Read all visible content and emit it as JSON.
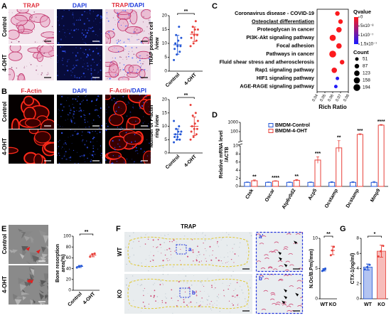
{
  "A": {
    "label": "A",
    "headers": [
      "TRAP",
      "DAPI"
    ],
    "merge_header": [
      "TRAP",
      "/DAPI"
    ],
    "header_colors": [
      "#e0303c",
      "#2240dd"
    ],
    "rows": [
      "Control",
      "4-OHT"
    ],
    "chart": {
      "type": "dot",
      "ylabel": [
        "TRAP positive cell",
        "/view"
      ],
      "categories": [
        "Control",
        "4-OHT"
      ],
      "groups": [
        {
          "color": "#2457d6",
          "points": [
            4,
            6,
            7,
            8,
            9,
            9,
            10,
            11,
            12,
            13,
            16
          ],
          "mean": 9.5,
          "sd": 3.4
        },
        {
          "color": "#e8403a",
          "points": [
            9,
            10,
            11,
            12,
            13,
            13,
            14,
            15,
            15,
            16,
            18
          ],
          "mean": 13.3,
          "sd": 2.6
        }
      ],
      "ylim": [
        0,
        20
      ],
      "yticks": [
        0,
        5,
        10,
        15,
        20
      ],
      "significance": "**"
    }
  },
  "B": {
    "label": "B",
    "headers": [
      "F-Actin",
      "DAPI"
    ],
    "merge_header": [
      "F-Actin",
      "/DAPI"
    ],
    "header_colors": [
      "#e0303c",
      "#2240dd"
    ],
    "rows": [
      "Control",
      "4-OHT"
    ],
    "chart": {
      "type": "dot",
      "ylabel": [
        "Number of F-actin",
        "ring /view"
      ],
      "categories": [
        "Control",
        "4-OHT"
      ],
      "groups": [
        {
          "color": "#2457d6",
          "points": [
            4,
            5,
            5,
            6,
            6,
            7,
            7,
            8,
            8,
            9,
            10,
            12
          ],
          "mean": 7,
          "sd": 2
        },
        {
          "color": "#e8403a",
          "points": [
            5,
            6,
            7,
            8,
            9,
            9,
            10,
            11,
            12,
            14,
            15,
            18
          ],
          "mean": 10,
          "sd": 3.5
        }
      ],
      "ylim": [
        0,
        20
      ],
      "yticks": [
        0,
        5,
        10,
        15,
        20
      ],
      "significance": "**"
    }
  },
  "C": {
    "label": "C",
    "chart": {
      "type": "bubble",
      "xlabel": "Rich Ratio",
      "terms": [
        "Coronavirus disease - COVID-19",
        "Osteoclast differentiation",
        "Proteoglycan in cancer",
        "PI3K-Akt signaling pathway",
        "Focal adhesion",
        "Pathways in cancer",
        "Fluid shear stress and atherosclerosis",
        "Rap1 signaling pathway",
        "HIF1 signaling pathway",
        "AGE-RAGE signaling pathway"
      ],
      "underline_index": 1,
      "x": [
        0.066,
        0.07,
        0.068,
        0.06,
        0.068,
        0.06,
        0.072,
        0.062,
        0.066,
        0.064
      ],
      "qvalue": [
        2e-09,
        1e-09,
        3e-09,
        2e-09,
        4e-09,
        1e-09,
        3e-09,
        5e-09,
        1.4e-07,
        1.45e-07
      ],
      "count": [
        87,
        87,
        123,
        158,
        123,
        194,
        87,
        123,
        51,
        51
      ],
      "xlim": [
        0.04,
        0.08
      ],
      "xticks": [
        0.04,
        0.05,
        0.06,
        0.07,
        0.08
      ],
      "qvalue_title": "Qvalue",
      "qlim": [
        0,
        1.5e-07
      ],
      "qticks": [
        0,
        {
          "value": 5e-08,
          "label": "5x10⁻⁸"
        },
        {
          "value": 1e-07,
          "label": "1x10⁻⁷"
        },
        {
          "value": 1.5e-07,
          "label": "1.5x10⁻⁷"
        }
      ],
      "count_title": "Count",
      "count_legend": [
        51,
        87,
        123,
        158,
        194
      ]
    }
  },
  "D": {
    "label": "D",
    "chart": {
      "type": "grouped_bar",
      "ylabel": [
        "Relative mRNA level",
        "/ACTB"
      ],
      "categories": [
        "Ctsk",
        "Oscar",
        "Atp6v0d2",
        "Acp5",
        "Ocstamp",
        "Dcstamp",
        "Mmp9"
      ],
      "series": [
        {
          "name": "BMDM-Control",
          "color": "#2457d6",
          "values": [
            1,
            1,
            1,
            1,
            1,
            1,
            1
          ],
          "sd": [
            0.1,
            0.1,
            0.1,
            0.1,
            0.15,
            0.15,
            0.2
          ]
        },
        {
          "name": "BMDM-4-OHT",
          "color": "#e8403a",
          "values": [
            1.4,
            1.3,
            1.5,
            6.5,
            9.5,
            50,
            500
          ],
          "sd": [
            0.2,
            0.1,
            0.2,
            0.8,
            1,
            8,
            80
          ]
        }
      ],
      "significance": [
        "**",
        "****",
        "**",
        "***",
        "**",
        "***",
        "****"
      ],
      "ylim": [
        0,
        1000
      ],
      "break": 10,
      "yticks": [
        0,
        2,
        4,
        6,
        8,
        10,
        100,
        1000
      ]
    }
  },
  "E": {
    "label": "E",
    "rows": [
      "Control",
      "4-OHT"
    ],
    "chart": {
      "type": "dot",
      "ylabel": [
        "Bone resorption",
        "area(%)"
      ],
      "categories": [
        "Control",
        "4-OHT"
      ],
      "groups": [
        {
          "color": "#2457d6",
          "points": [
            42,
            44,
            45
          ],
          "mean": 44,
          "sd": 2
        },
        {
          "color": "#e8403a",
          "points": [
            62,
            66,
            68
          ],
          "mean": 65,
          "sd": 3
        }
      ],
      "ylim": [
        0,
        100
      ],
      "yticks": [
        0,
        20,
        40,
        60,
        80,
        100
      ],
      "significance": "**"
    }
  },
  "F": {
    "label": "F",
    "title": "TRAP",
    "rows": [
      "WT",
      "KO"
    ],
    "roi_labels": [
      "a",
      "b"
    ],
    "zoom_labels": [
      "a'",
      "b'"
    ],
    "chart": {
      "type": "dot",
      "ylabel": [
        "N.Oc/B.Pm(/mm)"
      ],
      "categories": [
        "WT",
        "KO"
      ],
      "groups": [
        {
          "color": "#2457d6",
          "points": [
            4.6,
            4.8,
            5.0
          ],
          "mean": 4.8,
          "sd": 0.2
        },
        {
          "color": "#e8403a",
          "points": [
            7.2,
            8,
            8.6
          ],
          "mean": 8,
          "sd": 0.7
        }
      ],
      "ylim": [
        0,
        10
      ],
      "yticks": [
        0,
        5,
        10
      ],
      "significance": "**"
    }
  },
  "G": {
    "label": "G",
    "chart": {
      "type": "bar",
      "ylabel": [
        "CTX-1(ng/ml)"
      ],
      "categories": [
        "WT",
        "KO"
      ],
      "groups": [
        {
          "color": "#2457d6",
          "points": [
            3.9,
            4.2,
            4.5
          ],
          "mean": 4.2,
          "sd": 0.4
        },
        {
          "color": "#e8403a",
          "points": [
            5.6,
            6.3,
            7.0
          ],
          "mean": 6.3,
          "sd": 0.8
        }
      ],
      "ylim": [
        0,
        8
      ],
      "yticks": [
        0,
        2,
        4,
        6,
        8
      ],
      "significance": "*"
    }
  }
}
